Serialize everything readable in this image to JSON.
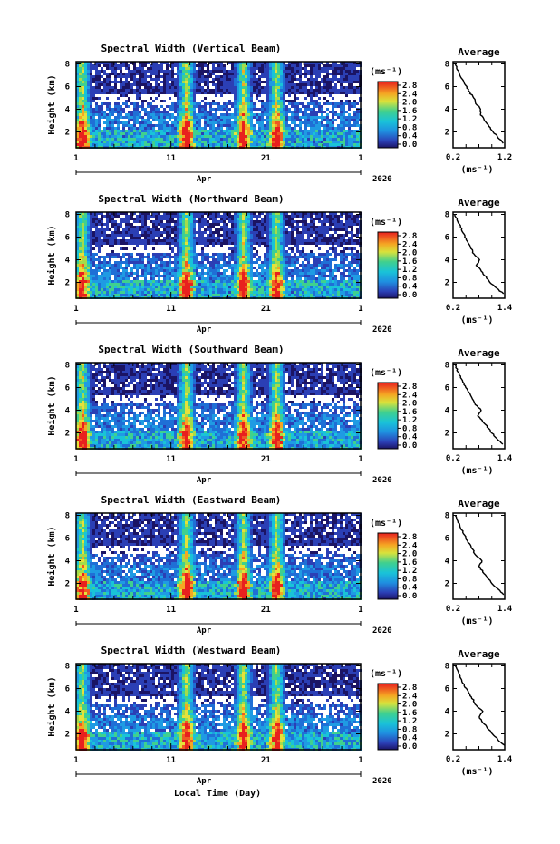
{
  "figure": {
    "year_label": "2020",
    "month_label": "Apr",
    "xlabel": "Local Time (Day)",
    "ylabel": "Height (km)",
    "cbar_unit": "(ms⁻¹)",
    "avg_title": "Average",
    "avg_unit": "(ms⁻¹)"
  },
  "chart_data": [
    {
      "type": "heatmap",
      "title": "Spectral Width (Vertical Beam)",
      "xlabel": "",
      "ylabel": "Height (km)",
      "x_ticks": [
        "1",
        "11",
        "21",
        "1"
      ],
      "xlim_day": [
        1,
        31
      ],
      "x_month": "Apr",
      "x_year": "2020",
      "y_ticks": [
        2,
        4,
        6,
        8
      ],
      "ylim": [
        0.6,
        8.2
      ],
      "colorbar": {
        "unit": "(ms⁻¹)",
        "tick_labels": [
          "2.8",
          "2.4",
          "2.0",
          "1.6",
          "1.2",
          "0.8",
          "0.4",
          "0.0"
        ],
        "range": [
          0.0,
          2.8
        ]
      },
      "high_width_days": [
        1.5,
        12.5,
        18.5,
        22.0
      ],
      "average_profile": {
        "title": "Average",
        "xlabel": "(ms⁻¹)",
        "x_ticks": [
          "0.2",
          "1.2"
        ],
        "xlim": [
          0.2,
          1.2
        ],
        "y_ticks": [
          2,
          4,
          6,
          8
        ],
        "height": [
          1.0,
          1.5,
          2.0,
          2.5,
          3.0,
          3.5,
          4.0,
          4.5,
          5.0,
          5.5,
          6.0,
          6.5,
          7.0,
          7.5,
          8.0
        ],
        "width": [
          1.18,
          1.08,
          0.98,
          0.9,
          0.82,
          0.74,
          0.74,
          0.64,
          0.6,
          0.52,
          0.46,
          0.4,
          0.34,
          0.29,
          0.24
        ]
      }
    },
    {
      "type": "heatmap",
      "title": "Spectral Width (Northward Beam)",
      "xlabel": "",
      "ylabel": "Height (km)",
      "x_ticks": [
        "1",
        "11",
        "21",
        "1"
      ],
      "xlim_day": [
        1,
        31
      ],
      "x_month": "Apr",
      "x_year": "2020",
      "y_ticks": [
        2,
        4,
        6,
        8
      ],
      "ylim": [
        0.6,
        8.2
      ],
      "colorbar": {
        "unit": "(ms⁻¹)",
        "tick_labels": [
          "2.8",
          "2.4",
          "2.0",
          "1.6",
          "1.2",
          "0.8",
          "0.4",
          "0.0"
        ],
        "range": [
          0.0,
          2.8
        ]
      },
      "high_width_days": [
        1.5,
        12.5,
        18.5,
        22.0
      ],
      "average_profile": {
        "title": "Average",
        "xlabel": "(ms⁻¹)",
        "x_ticks": [
          "0.2",
          "1.4"
        ],
        "xlim": [
          0.2,
          1.4
        ],
        "y_ticks": [
          2,
          4,
          6,
          8
        ],
        "height": [
          1.0,
          1.5,
          2.0,
          2.5,
          3.0,
          3.5,
          4.0,
          4.5,
          5.0,
          5.5,
          6.0,
          6.5,
          7.0,
          7.5,
          8.0
        ],
        "width": [
          1.38,
          1.2,
          1.06,
          0.96,
          0.86,
          0.74,
          0.82,
          0.68,
          0.62,
          0.55,
          0.48,
          0.42,
          0.36,
          0.3,
          0.24
        ]
      }
    },
    {
      "type": "heatmap",
      "title": "Spectral Width (Southward Beam)",
      "xlabel": "",
      "ylabel": "Height (km)",
      "x_ticks": [
        "1",
        "11",
        "21",
        "1"
      ],
      "xlim_day": [
        1,
        31
      ],
      "x_month": "Apr",
      "x_year": "2020",
      "y_ticks": [
        2,
        4,
        6,
        8
      ],
      "ylim": [
        0.6,
        8.2
      ],
      "colorbar": {
        "unit": "(ms⁻¹)",
        "tick_labels": [
          "2.8",
          "2.4",
          "2.0",
          "1.6",
          "1.2",
          "0.8",
          "0.4",
          "0.0"
        ],
        "range": [
          0.0,
          2.8
        ]
      },
      "high_width_days": [
        1.5,
        12.5,
        18.5,
        22.0
      ],
      "average_profile": {
        "title": "Average",
        "xlabel": "(ms⁻¹)",
        "x_ticks": [
          "0.2",
          "1.4"
        ],
        "xlim": [
          0.2,
          1.4
        ],
        "y_ticks": [
          2,
          4,
          6,
          8
        ],
        "height": [
          1.0,
          1.5,
          2.0,
          2.5,
          3.0,
          3.5,
          4.0,
          4.5,
          5.0,
          5.5,
          6.0,
          6.5,
          7.0,
          7.5,
          8.0
        ],
        "width": [
          1.36,
          1.22,
          1.1,
          1.0,
          0.9,
          0.78,
          0.86,
          0.72,
          0.66,
          0.58,
          0.5,
          0.43,
          0.36,
          0.3,
          0.25
        ]
      }
    },
    {
      "type": "heatmap",
      "title": "Spectral Width (Eastward Beam)",
      "xlabel": "",
      "ylabel": "Height (km)",
      "x_ticks": [
        "1",
        "11",
        "21",
        "1"
      ],
      "xlim_day": [
        1,
        31
      ],
      "x_month": "Apr",
      "x_year": "2020",
      "y_ticks": [
        2,
        4,
        6,
        8
      ],
      "ylim": [
        0.6,
        8.2
      ],
      "colorbar": {
        "unit": "(ms⁻¹)",
        "tick_labels": [
          "2.8",
          "2.4",
          "2.0",
          "1.6",
          "1.2",
          "0.8",
          "0.4",
          "0.0"
        ],
        "range": [
          0.0,
          2.8
        ]
      },
      "high_width_days": [
        1.5,
        12.5,
        18.5,
        22.0
      ],
      "average_profile": {
        "title": "Average",
        "xlabel": "(ms⁻¹)",
        "x_ticks": [
          "0.2",
          "1.4"
        ],
        "xlim": [
          0.2,
          1.4
        ],
        "y_ticks": [
          2,
          4,
          6,
          8
        ],
        "height": [
          1.0,
          1.5,
          2.0,
          2.5,
          3.0,
          3.5,
          4.0,
          4.5,
          5.0,
          5.5,
          6.0,
          6.5,
          7.0,
          7.5,
          8.0
        ],
        "width": [
          1.37,
          1.24,
          1.1,
          1.0,
          0.9,
          0.8,
          0.88,
          0.72,
          0.66,
          0.57,
          0.5,
          0.43,
          0.37,
          0.31,
          0.25
        ]
      }
    },
    {
      "type": "heatmap",
      "title": "Spectral Width (Westward Beam)",
      "xlabel": "Local Time (Day)",
      "ylabel": "Height (km)",
      "x_ticks": [
        "1",
        "11",
        "21",
        "1"
      ],
      "xlim_day": [
        1,
        31
      ],
      "x_month": "Apr",
      "x_year": "2020",
      "y_ticks": [
        2,
        4,
        6,
        8
      ],
      "ylim": [
        0.6,
        8.2
      ],
      "colorbar": {
        "unit": "(ms⁻¹)",
        "tick_labels": [
          "2.8",
          "2.4",
          "2.0",
          "1.6",
          "1.2",
          "0.8",
          "0.4",
          "0.0"
        ],
        "range": [
          0.0,
          2.8
        ]
      },
      "high_width_days": [
        1.5,
        12.5,
        18.5,
        22.0
      ],
      "average_profile": {
        "title": "Average",
        "xlabel": "(ms⁻¹)",
        "x_ticks": [
          "0.2",
          "1.4"
        ],
        "xlim": [
          0.2,
          1.4
        ],
        "y_ticks": [
          2,
          4,
          6,
          8
        ],
        "height": [
          1.0,
          1.5,
          2.0,
          2.5,
          3.0,
          3.5,
          4.0,
          4.5,
          5.0,
          5.5,
          6.0,
          6.5,
          7.0,
          7.5,
          8.0
        ],
        "width": [
          1.38,
          1.24,
          1.12,
          1.0,
          0.9,
          0.8,
          0.9,
          0.74,
          0.67,
          0.58,
          0.5,
          0.43,
          0.37,
          0.31,
          0.25
        ]
      }
    }
  ]
}
